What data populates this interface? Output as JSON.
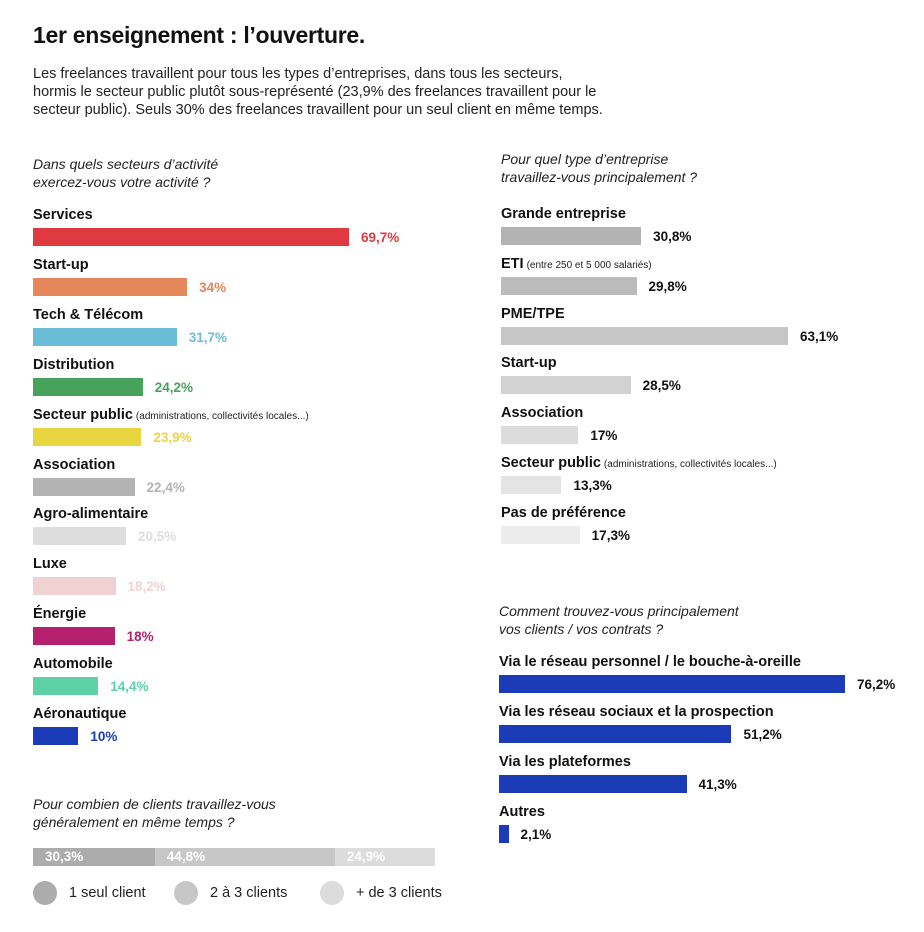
{
  "title": "1er enseignement : l’ouverture.",
  "intro": [
    "Les freelances travaillent pour tous les types d’entreprises, dans tous les secteurs,",
    "hormis le secteur public plutôt sous-représenté (23,9% des freelances travaillent pour le",
    "secteur public). Seuls 30% des freelances travaillent pour un seul client en même temps."
  ],
  "chart_data": [
    {
      "type": "bar",
      "orientation": "horizontal",
      "title_lines": [
        "Dans quels secteurs d’activité",
        "exercez-vous votre activité ?"
      ],
      "items": [
        {
          "label": "Services",
          "note": "",
          "value": 69.7,
          "display": "69,7%",
          "color": "#df3a3f",
          "value_color": "#df3a3f"
        },
        {
          "label": "Start-up",
          "note": "",
          "value": 34,
          "display": "34%",
          "color": "#e6875b",
          "value_color": "#e6875b"
        },
        {
          "label": "Tech & Télécom",
          "note": "",
          "value": 31.7,
          "display": "31,7%",
          "color": "#6bbcd6",
          "value_color": "#6bbcd6"
        },
        {
          "label": "Distribution",
          "note": "",
          "value": 24.2,
          "display": "24,2%",
          "color": "#47a25c",
          "value_color": "#47a25c"
        },
        {
          "label": "Secteur public",
          "note": "(administrations, collectivités locales...)",
          "value": 23.9,
          "display": "23,9%",
          "color": "#e9d540",
          "value_color": "#e9d540"
        },
        {
          "label": "Association",
          "note": "",
          "value": 22.4,
          "display": "22,4%",
          "color": "#b3b3b3",
          "value_color": "#b3b3b3"
        },
        {
          "label": "Agro-alimentaire",
          "note": "",
          "value": 20.5,
          "display": "20,5%",
          "color": "#dddddd",
          "value_color": "#dddddd"
        },
        {
          "label": "Luxe",
          "note": "",
          "value": 18.2,
          "display": "18,2%",
          "color": "#f0d2d2",
          "value_color": "#f0d2d2"
        },
        {
          "label": "Énergie",
          "note": "",
          "value": 18,
          "display": "18%",
          "color": "#b5206f",
          "value_color": "#b5206f"
        },
        {
          "label": "Automobile",
          "note": "",
          "value": 14.4,
          "display": "14,4%",
          "color": "#5fd1a8",
          "value_color": "#5fd1a8"
        },
        {
          "label": "Aéronautique",
          "note": "",
          "value": 10,
          "display": "10%",
          "color": "#1c3bb6",
          "value_color": "#1c3bb6"
        }
      ]
    },
    {
      "type": "bar",
      "orientation": "horizontal",
      "title_lines": [
        "Pour quel type d’entreprise",
        "travaillez-vous principalement ?"
      ],
      "items": [
        {
          "label": "Grande entreprise",
          "note": "",
          "value": 30.8,
          "display": "30,8%",
          "color": "#b3b3b3",
          "value_color": "#111111"
        },
        {
          "label": "ETI",
          "note": "(entre 250 et 5 000 salariés)",
          "value": 29.8,
          "display": "29,8%",
          "color": "#bcbcbc",
          "value_color": "#111111"
        },
        {
          "label": "PME/TPE",
          "note": "",
          "value": 63.1,
          "display": "63,1%",
          "color": "#c6c6c6",
          "value_color": "#111111"
        },
        {
          "label": "Start-up",
          "note": "",
          "value": 28.5,
          "display": "28,5%",
          "color": "#d2d2d2",
          "value_color": "#111111"
        },
        {
          "label": "Association",
          "note": "",
          "value": 17,
          "display": "17%",
          "color": "#dcdcdc",
          "value_color": "#111111"
        },
        {
          "label": "Secteur public",
          "note": "(administrations, collectivités locales...)",
          "value": 13.3,
          "display": "13,3%",
          "color": "#e4e4e4",
          "value_color": "#111111"
        },
        {
          "label": "Pas de préférence",
          "note": "",
          "value": 17.3,
          "display": "17,3%",
          "color": "#ececec",
          "value_color": "#111111"
        }
      ]
    },
    {
      "type": "bar",
      "orientation": "horizontal",
      "title_lines": [
        "Comment trouvez-vous principalement",
        "vos clients / vos contrats ?"
      ],
      "items": [
        {
          "label": "Via le réseau personnel / le bouche-à-oreille",
          "note": "",
          "value": 76.2,
          "display": "76,2%",
          "color": "#1c3bb6",
          "value_color": "#111111"
        },
        {
          "label": "Via les réseau sociaux et la prospection",
          "note": "",
          "value": 51.2,
          "display": "51,2%",
          "color": "#1c3bb6",
          "value_color": "#111111"
        },
        {
          "label": "Via les plateformes",
          "note": "",
          "value": 41.3,
          "display": "41,3%",
          "color": "#1c3bb6",
          "value_color": "#111111"
        },
        {
          "label": "Autres",
          "note": "",
          "value": 2.1,
          "display": "2,1%",
          "color": "#1c3bb6",
          "value_color": "#111111"
        }
      ]
    },
    {
      "type": "bar",
      "orientation": "stacked-horizontal",
      "title_lines": [
        "Pour combien de clients travaillez-vous",
        "généralement en même temps ?"
      ],
      "segments": [
        {
          "label": "1 seul client",
          "value": 30.3,
          "display": "30,3%",
          "color": "#acacac"
        },
        {
          "label": "2 à 3 clients",
          "value": 44.8,
          "display": "44,8%",
          "color": "#c7c7c7"
        },
        {
          "label": "+ de 3 clients",
          "value": 24.9,
          "display": "24,9%",
          "color": "#dcdcdc"
        }
      ]
    }
  ]
}
